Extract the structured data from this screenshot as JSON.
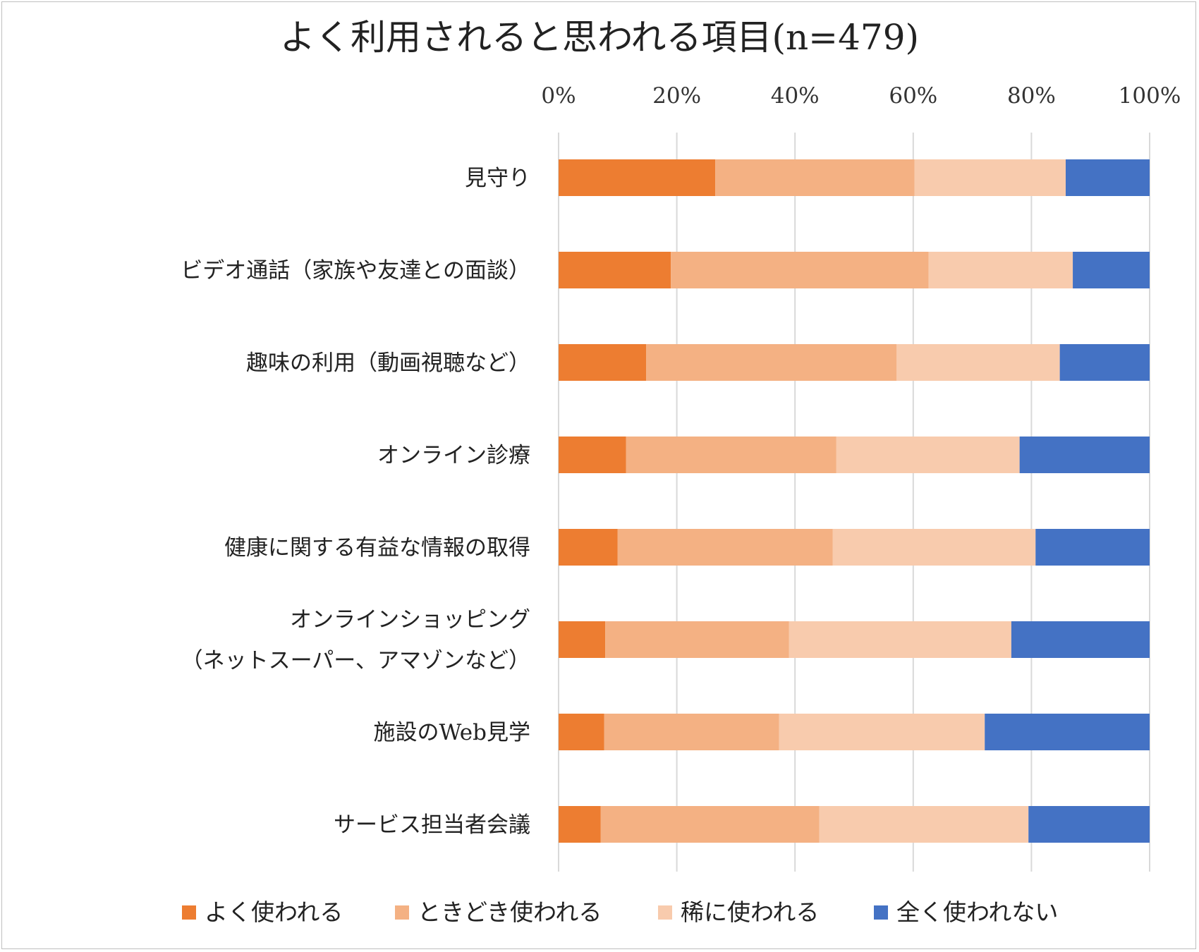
{
  "chart_data": {
    "type": "bar",
    "orientation": "horizontal",
    "stacked": "percent",
    "title": "よく利用されると思われる項目(n=479)",
    "xlabel": "",
    "ylabel": "",
    "xlim": [
      0,
      100
    ],
    "x_ticks": [
      "0%",
      "20%",
      "40%",
      "60%",
      "80%",
      "100%"
    ],
    "grid": true,
    "legend_position": "bottom",
    "categories": [
      [
        "見守り"
      ],
      [
        "ビデオ通話（家族や友達との面談）"
      ],
      [
        "趣味の利用（動画視聴など）"
      ],
      [
        "オンライン診療"
      ],
      [
        "健康に関する有益な情報の取得"
      ],
      [
        "オンラインショッピング",
        "（ネットスーパー、アマゾンなど）"
      ],
      [
        "施設のWeb見学"
      ],
      [
        "サービス担当者会議"
      ]
    ],
    "series": [
      {
        "name": "よく使われる",
        "color": "#ED7D31",
        "values": [
          26.5,
          19.0,
          14.8,
          11.4,
          10.0,
          7.9,
          7.7,
          7.1
        ]
      },
      {
        "name": "ときどき使われる",
        "color": "#F4B183",
        "values": [
          33.7,
          43.6,
          42.4,
          35.6,
          36.4,
          31.1,
          29.6,
          37.0
        ]
      },
      {
        "name": "稀に使われる",
        "color": "#F8CBAD",
        "values": [
          25.6,
          24.4,
          27.6,
          31.0,
          34.3,
          37.6,
          34.8,
          35.4
        ]
      },
      {
        "name": "全く使われない",
        "color": "#4472C4",
        "values": [
          14.2,
          13.0,
          15.2,
          22.0,
          19.3,
          23.4,
          27.9,
          20.5
        ]
      }
    ]
  }
}
